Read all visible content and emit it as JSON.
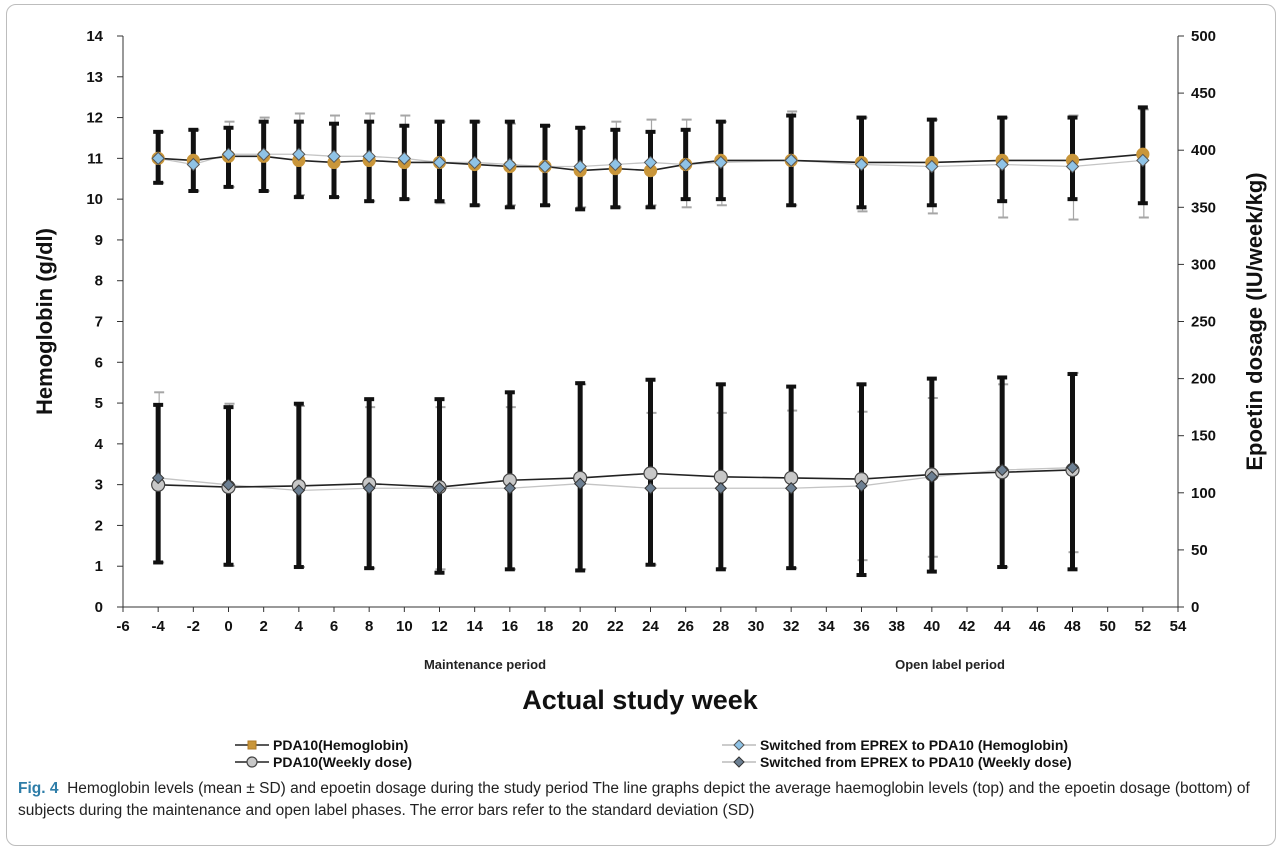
{
  "chart_data": {
    "type": "line",
    "xlabel": "Actual study week",
    "ylabel_left": "Hemoglobin (g/dl)",
    "ylabel_right": "Epoetin dosage (IU/week/kg)",
    "xlim": [
      -6,
      54
    ],
    "ylim_left": [
      0,
      14
    ],
    "ylim_right": [
      0,
      500
    ],
    "x_ticks": [
      -6,
      -4,
      -2,
      0,
      2,
      4,
      6,
      8,
      10,
      12,
      14,
      16,
      18,
      20,
      22,
      24,
      26,
      28,
      30,
      32,
      34,
      36,
      38,
      40,
      42,
      44,
      46,
      48,
      50,
      52,
      54
    ],
    "y_left_ticks": [
      0,
      1,
      2,
      3,
      4,
      5,
      6,
      7,
      8,
      9,
      10,
      11,
      12,
      13,
      14
    ],
    "y_right_ticks": [
      0,
      50,
      100,
      150,
      200,
      250,
      300,
      350,
      400,
      450,
      500
    ],
    "period_labels": [
      "Maintenance period",
      "Open label period"
    ],
    "series": [
      {
        "name": "PDA10(Hemoglobin)",
        "axis": "left",
        "color": "#c9963a",
        "marker": "square",
        "x": [
          -4,
          -2,
          0,
          2,
          4,
          6,
          8,
          10,
          12,
          14,
          16,
          18,
          20,
          22,
          24,
          26,
          28,
          32,
          36,
          40,
          44,
          48,
          52
        ],
        "values": [
          11.0,
          10.95,
          11.05,
          11.05,
          10.95,
          10.9,
          10.95,
          10.9,
          10.9,
          10.85,
          10.8,
          10.8,
          10.7,
          10.75,
          10.7,
          10.85,
          10.95,
          10.95,
          10.9,
          10.9,
          10.95,
          10.95,
          11.1
        ],
        "err_upper": [
          11.65,
          11.7,
          11.75,
          11.9,
          11.9,
          11.85,
          11.9,
          11.8,
          11.9,
          11.9,
          11.9,
          11.8,
          11.75,
          11.7,
          11.65,
          11.7,
          11.9,
          12.05,
          12.0,
          11.95,
          12.0,
          12.0,
          12.25
        ],
        "err_lower": [
          10.4,
          10.2,
          10.3,
          10.2,
          10.05,
          10.05,
          9.95,
          10.0,
          9.95,
          9.85,
          9.8,
          9.85,
          9.75,
          9.8,
          9.8,
          10.0,
          10.0,
          9.85,
          9.8,
          9.85,
          9.95,
          10.0,
          9.9
        ]
      },
      {
        "name": "Switched from EPREX to PDA10 (Hemoglobin)",
        "axis": "left",
        "color": "#8fc3e6",
        "marker": "diamond",
        "x": [
          -4,
          -2,
          0,
          2,
          4,
          6,
          8,
          10,
          12,
          14,
          16,
          18,
          20,
          22,
          24,
          26,
          28,
          32,
          36,
          40,
          44,
          48,
          52
        ],
        "values": [
          11.0,
          10.85,
          11.1,
          11.1,
          11.1,
          11.05,
          11.05,
          11.0,
          10.9,
          10.9,
          10.85,
          10.8,
          10.8,
          10.85,
          10.9,
          10.85,
          10.9,
          10.95,
          10.85,
          10.8,
          10.85,
          10.8,
          10.95
        ],
        "err_upper": [
          11.65,
          11.7,
          11.9,
          12.0,
          12.1,
          12.05,
          12.1,
          12.05,
          11.9,
          11.9,
          11.85,
          11.8,
          11.75,
          11.9,
          11.95,
          11.95,
          11.9,
          12.15,
          12.0,
          11.95,
          12.0,
          12.05,
          12.2
        ],
        "err_lower": [
          10.4,
          10.2,
          10.3,
          10.2,
          10.1,
          10.05,
          9.95,
          10.0,
          9.9,
          9.85,
          9.85,
          9.85,
          9.8,
          9.8,
          9.85,
          9.8,
          9.85,
          9.85,
          9.7,
          9.65,
          9.55,
          9.5,
          9.55
        ]
      },
      {
        "name": "PDA10(Weekly dose)",
        "axis": "right",
        "color": "#c8c8c8",
        "marker": "circle",
        "x": [
          -4,
          0,
          4,
          8,
          12,
          16,
          20,
          24,
          28,
          32,
          36,
          40,
          44,
          48
        ],
        "values": [
          107,
          105,
          106,
          108,
          105,
          111,
          113,
          117,
          114,
          113,
          112,
          116,
          118,
          120
        ],
        "err_upper": [
          177,
          175,
          178,
          182,
          182,
          188,
          196,
          199,
          195,
          193,
          195,
          200,
          201,
          204
        ],
        "err_lower": [
          39,
          37,
          35,
          34,
          30,
          33,
          32,
          37,
          33,
          34,
          28,
          31,
          35,
          33
        ]
      },
      {
        "name": "Switched from EPREX to PDA10 (Weekly dose)",
        "axis": "right",
        "color": "#6c7f92",
        "marker": "diamond",
        "x": [
          -4,
          0,
          4,
          8,
          12,
          16,
          20,
          24,
          28,
          32,
          36,
          40,
          44,
          48
        ],
        "values": [
          113,
          107,
          102,
          104,
          104,
          104,
          108,
          104,
          104,
          104,
          106,
          114,
          120,
          122
        ],
        "err_upper": [
          188,
          178,
          176,
          175,
          175,
          175,
          195,
          170,
          170,
          172,
          171,
          183,
          195,
          205
        ],
        "err_lower": [
          39,
          36,
          35,
          34,
          33,
          33,
          33,
          37,
          34,
          34,
          41,
          44,
          35,
          48
        ]
      }
    ],
    "legend_position": "bottom"
  },
  "caption": {
    "label": "Fig. 4",
    "text": "Hemoglobin levels (mean ± SD) and epoetin dosage during the study period The line graphs depict the average haemoglobin levels (top) and the epoetin dosage (bottom) of subjects during the maintenance and open label phases. The error bars refer to the standard deviation (SD)"
  }
}
